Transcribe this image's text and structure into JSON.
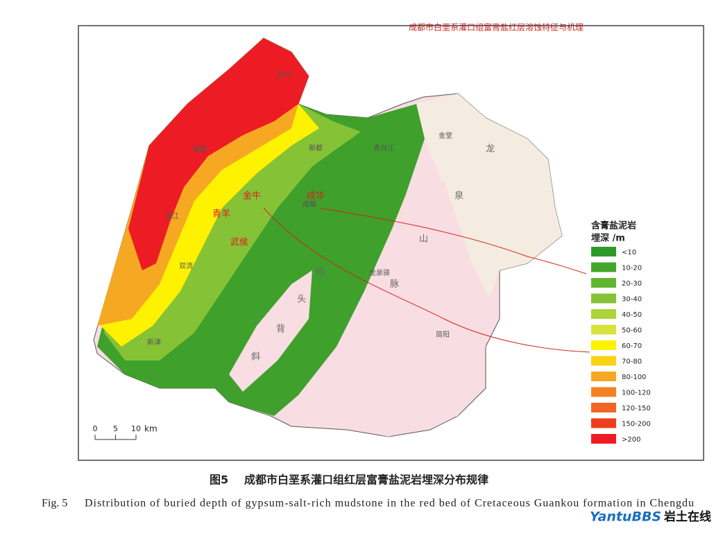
{
  "header_note": "成都市白垩系灌口组富膏盐红层溶蚀特征与机理",
  "map": {
    "annotations": [
      "金牛",
      "成华",
      "青羊",
      "武侯"
    ],
    "place_labels": [
      "彭州",
      "郫都",
      "新都",
      "青白江",
      "金堂",
      "温江",
      "双流",
      "新津",
      "龙泉驿",
      "简阳",
      "成都"
    ],
    "mountain_label": [
      "龙",
      "泉",
      "山",
      "脉"
    ],
    "anticline_label": [
      "码",
      "头",
      "背",
      "斜"
    ]
  },
  "legend": {
    "title": "含膏盐泥岩",
    "subtitle": "埋深  /m",
    "items": [
      {
        "label": "<10",
        "color": "#2e9a2a"
      },
      {
        "label": "10-20",
        "color": "#45a62c"
      },
      {
        "label": "20-30",
        "color": "#62b530"
      },
      {
        "label": "30-40",
        "color": "#86c236"
      },
      {
        "label": "40-50",
        "color": "#add33b"
      },
      {
        "label": "50-60",
        "color": "#d7e23c"
      },
      {
        "label": "60-70",
        "color": "#fff200"
      },
      {
        "label": "70-80",
        "color": "#fcd116"
      },
      {
        "label": "80-100",
        "color": "#f7a823"
      },
      {
        "label": "100-120",
        "color": "#f58220"
      },
      {
        "label": "120-150",
        "color": "#f26522"
      },
      {
        "label": "150-200",
        "color": "#ee3d1f"
      },
      {
        "label": ">200",
        "color": "#ed1c24"
      }
    ]
  },
  "scale_bar": {
    "ticks": [
      0,
      5,
      10
    ],
    "unit": "km"
  },
  "caption": {
    "cn_label": "图5",
    "cn_text": "成都市白垩系灌口组红层富膏盐泥岩埋深分布规律",
    "en_label": "Fig. 5",
    "en_text": "Distribution of buried depth of gypsum-salt-rich mudstone in the red bed of Cretaceous Guankou formation in Chengdu"
  },
  "watermark": {
    "brand": "YantuBBS",
    "cn": "岩土在线"
  }
}
